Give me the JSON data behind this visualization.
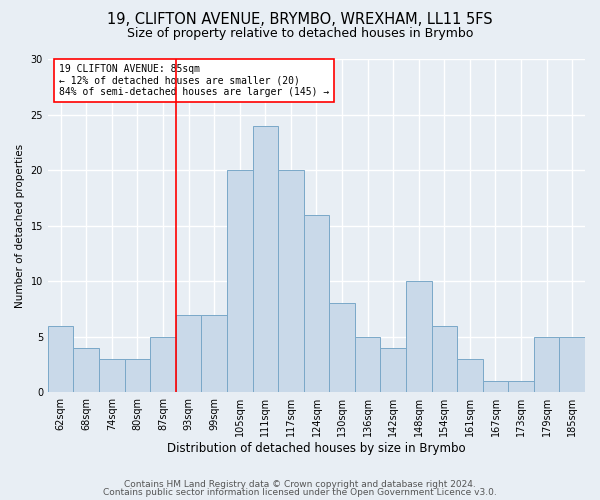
{
  "title1": "19, CLIFTON AVENUE, BRYMBO, WREXHAM, LL11 5FS",
  "title2": "Size of property relative to detached houses in Brymbo",
  "xlabel": "Distribution of detached houses by size in Brymbo",
  "ylabel": "Number of detached properties",
  "categories": [
    "62sqm",
    "68sqm",
    "74sqm",
    "80sqm",
    "87sqm",
    "93sqm",
    "99sqm",
    "105sqm",
    "111sqm",
    "117sqm",
    "124sqm",
    "130sqm",
    "136sqm",
    "142sqm",
    "148sqm",
    "154sqm",
    "161sqm",
    "167sqm",
    "173sqm",
    "179sqm",
    "185sqm"
  ],
  "values": [
    6,
    4,
    3,
    3,
    5,
    7,
    7,
    20,
    24,
    20,
    16,
    8,
    5,
    4,
    10,
    6,
    3,
    1,
    1,
    5,
    5
  ],
  "bar_color": "#c9d9e9",
  "bar_edge_color": "#7aa8c8",
  "highlight_index": 4,
  "redline_label": "19 CLIFTON AVENUE: 85sqm",
  "annotation_line1": "← 12% of detached houses are smaller (20)",
  "annotation_line2": "84% of semi-detached houses are larger (145) →",
  "ylim": [
    0,
    30
  ],
  "yticks": [
    0,
    5,
    10,
    15,
    20,
    25,
    30
  ],
  "footer1": "Contains HM Land Registry data © Crown copyright and database right 2024.",
  "footer2": "Contains public sector information licensed under the Open Government Licence v3.0.",
  "bg_color": "#e8eef4",
  "plot_bg_color": "#e8eef4",
  "grid_color": "#ffffff",
  "title1_fontsize": 10.5,
  "title2_fontsize": 9,
  "xlabel_fontsize": 8.5,
  "ylabel_fontsize": 7.5,
  "tick_fontsize": 7,
  "annot_fontsize": 7,
  "footer_fontsize": 6.5
}
